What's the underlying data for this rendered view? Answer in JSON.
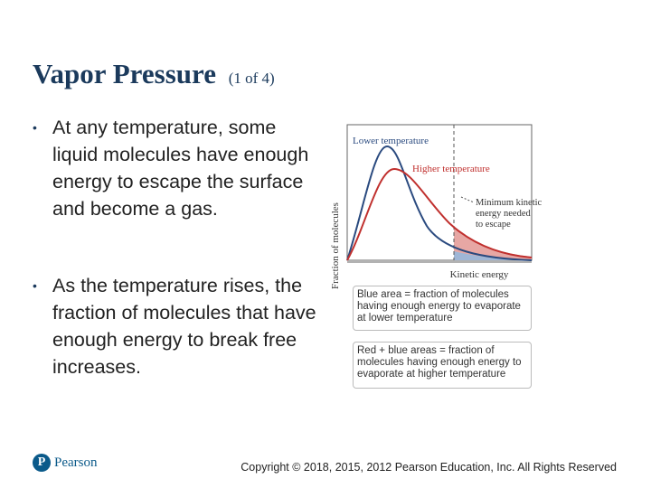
{
  "slide": {
    "title": "Vapor Pressure",
    "title_suffix": "(1 of 4)",
    "bullets": [
      "At any temperature, some liquid molecules have enough energy to escape the surface and become a gas.",
      "As the temperature rises, the fraction of molecules that have enough energy to break free increases."
    ],
    "bullet_symbol": "•"
  },
  "figure": {
    "ylabel": "Fraction of molecules",
    "xlabel": "Kinetic energy",
    "lower_label": "Lower temperature",
    "higher_label": "Higher temperature",
    "min_label_line1": "Minimum kinetic",
    "min_label_line2": "energy needed",
    "min_label_line3": "to escape",
    "caption_blue": "Blue area = fraction of molecules having enough energy to evaporate at lower temperature",
    "caption_red": "Red + blue areas = fraction of molecules having enough energy to evaporate at higher temperature",
    "colors": {
      "lower": "#2a4a7f",
      "higher": "#c0302e",
      "blue_fill": "#9fb6d6",
      "red_fill": "#e7a7a4",
      "panel_bg": "#ffffff"
    }
  },
  "footer": {
    "logo_letter": "P",
    "logo_name": "Pearson",
    "copyright": "Copyright © 2018, 2015, 2012 Pearson Education, Inc. All Rights Reserved"
  }
}
